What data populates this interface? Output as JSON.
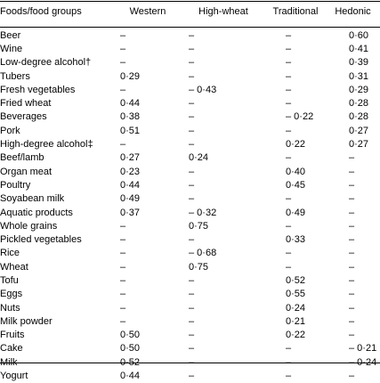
{
  "headers": [
    "Foods/food groups",
    "Western",
    "High-wheat",
    "Traditional",
    "Hedonic"
  ],
  "rows": [
    {
      "food": "Beer",
      "western": "–",
      "high_wheat": "–",
      "traditional": "–",
      "hedonic": "0·60"
    },
    {
      "food": "Wine",
      "western": "–",
      "high_wheat": "–",
      "traditional": "–",
      "hedonic": "0·41"
    },
    {
      "food": "Low-degree alcohol†",
      "western": "–",
      "high_wheat": "–",
      "traditional": "–",
      "hedonic": "0·39"
    },
    {
      "food": "Tubers",
      "western": "0·29",
      "high_wheat": "–",
      "traditional": "–",
      "hedonic": "0·31"
    },
    {
      "food": "Fresh vegetables",
      "western": "–",
      "high_wheat": "– 0·43",
      "traditional": "–",
      "hedonic": "0·29"
    },
    {
      "food": "Fried wheat",
      "western": "0·44",
      "high_wheat": "–",
      "traditional": "–",
      "hedonic": "0·28"
    },
    {
      "food": "Beverages",
      "western": "0·38",
      "high_wheat": "–",
      "traditional": "– 0·22",
      "hedonic": "0·28"
    },
    {
      "food": "Pork",
      "western": "0·51",
      "high_wheat": "–",
      "traditional": "–",
      "hedonic": "0·27"
    },
    {
      "food": "High-degree alcohol‡",
      "western": "–",
      "high_wheat": "–",
      "traditional": "0·22",
      "hedonic": "0·27"
    },
    {
      "food": "Beef/lamb",
      "western": "0·27",
      "high_wheat": "0·24",
      "traditional": "–",
      "hedonic": "–"
    },
    {
      "food": "Organ meat",
      "western": "0·23",
      "high_wheat": "–",
      "traditional": "0·40",
      "hedonic": "–"
    },
    {
      "food": "Poultry",
      "western": "0·44",
      "high_wheat": "–",
      "traditional": "0·45",
      "hedonic": "–"
    },
    {
      "food": "Soyabean milk",
      "western": "0·49",
      "high_wheat": "–",
      "traditional": "–",
      "hedonic": "–"
    },
    {
      "food": "Aquatic products",
      "western": "0·37",
      "high_wheat": "– 0·32",
      "traditional": "0·49",
      "hedonic": "–"
    },
    {
      "food": "Whole grains",
      "western": "–",
      "high_wheat": "0·75",
      "traditional": "–",
      "hedonic": "–"
    },
    {
      "food": "Pickled vegetables",
      "western": "–",
      "high_wheat": "–",
      "traditional": "0·33",
      "hedonic": "–"
    },
    {
      "food": "Rice",
      "western": "–",
      "high_wheat": "– 0·68",
      "traditional": "–",
      "hedonic": "–"
    },
    {
      "food": "Wheat",
      "western": "–",
      "high_wheat": "0·75",
      "traditional": "–",
      "hedonic": "–"
    },
    {
      "food": "Tofu",
      "western": "–",
      "high_wheat": "–",
      "traditional": "0·52",
      "hedonic": "–"
    },
    {
      "food": "Eggs",
      "western": "–",
      "high_wheat": "–",
      "traditional": "0·55",
      "hedonic": "–"
    },
    {
      "food": "Nuts",
      "western": "–",
      "high_wheat": "–",
      "traditional": "0·24",
      "hedonic": "–"
    },
    {
      "food": "Milk powder",
      "western": "–",
      "high_wheat": "–",
      "traditional": "0·21",
      "hedonic": "–"
    },
    {
      "food": "Fruits",
      "western": "0·50",
      "high_wheat": "–",
      "traditional": "0·22",
      "hedonic": "–"
    },
    {
      "food": "Cake",
      "western": "0·50",
      "high_wheat": "–",
      "traditional": "–",
      "hedonic": "– 0·21"
    },
    {
      "food": "Milk",
      "western": "0·52",
      "high_wheat": "–",
      "traditional": "–",
      "hedonic": "– 0·24"
    },
    {
      "food": "Yogurt",
      "western": "0·44",
      "high_wheat": "–",
      "traditional": "–",
      "hedonic": "–"
    }
  ]
}
